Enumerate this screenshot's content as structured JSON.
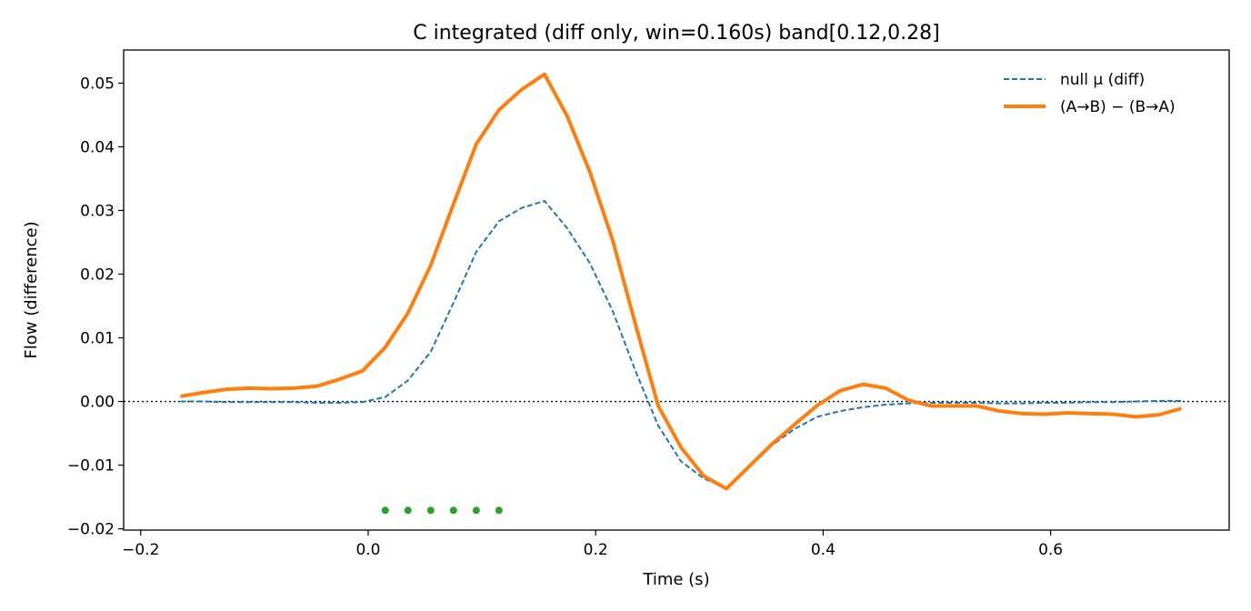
{
  "chart_data": {
    "type": "line",
    "title": "C integrated (diff only, win=0.160s)   band[0.12,0.28]",
    "xlabel": "Time (s)",
    "ylabel": "Flow (difference)",
    "xlim": [
      -0.215,
      0.757
    ],
    "ylim": [
      -0.0202,
      0.0552
    ],
    "xticks": [
      -0.2,
      0.0,
      0.2,
      0.4,
      0.6
    ],
    "xtick_labels": [
      "−0.2",
      "0.0",
      "0.2",
      "0.4",
      "0.6"
    ],
    "yticks": [
      -0.02,
      -0.01,
      0.0,
      0.01,
      0.02,
      0.03,
      0.04,
      0.05
    ],
    "ytick_labels": [
      "−0.02",
      "−0.01",
      "0.00",
      "0.01",
      "0.02",
      "0.03",
      "0.04",
      "0.05"
    ],
    "grid": false,
    "legend_position": "top-right",
    "reference_line": {
      "y": 0.0,
      "style": "dotted",
      "color": "#000000"
    },
    "series": [
      {
        "name": "null μ (diff)",
        "style": "dashed",
        "color": "#1f77b4",
        "x": [
          -0.165,
          -0.145,
          -0.125,
          -0.105,
          -0.085,
          -0.065,
          -0.045,
          -0.025,
          -0.005,
          0.015,
          0.035,
          0.055,
          0.075,
          0.095,
          0.115,
          0.135,
          0.155,
          0.175,
          0.195,
          0.215,
          0.235,
          0.255,
          0.275,
          0.295,
          0.315,
          0.335,
          0.355,
          0.375,
          0.395,
          0.415,
          0.435,
          0.455,
          0.475,
          0.495,
          0.515,
          0.535,
          0.555,
          0.575,
          0.595,
          0.615,
          0.635,
          0.655,
          0.675,
          0.695,
          0.715
        ],
        "values": [
          0.0,
          0.0,
          -0.0001,
          -0.0001,
          -0.0001,
          -0.0001,
          -0.0002,
          -0.0002,
          -0.0001,
          0.0007,
          0.0033,
          0.0078,
          0.0155,
          0.0235,
          0.0283,
          0.0304,
          0.0315,
          0.0272,
          0.0217,
          0.0142,
          0.0048,
          -0.0038,
          -0.0094,
          -0.0121,
          -0.0136,
          -0.0103,
          -0.0069,
          -0.0043,
          -0.0024,
          -0.0015,
          -0.0009,
          -0.0005,
          -0.0003,
          -0.0002,
          -0.0002,
          -0.0002,
          -0.0003,
          -0.0003,
          -0.0002,
          -0.0002,
          -0.0001,
          -0.0001,
          0.0,
          0.0001,
          0.0001
        ]
      },
      {
        "name": "(A→B) − (B→A)",
        "style": "solid",
        "color": "#ff7f0e",
        "x": [
          -0.165,
          -0.145,
          -0.125,
          -0.105,
          -0.085,
          -0.065,
          -0.045,
          -0.025,
          -0.005,
          0.015,
          0.035,
          0.055,
          0.075,
          0.095,
          0.115,
          0.135,
          0.155,
          0.175,
          0.195,
          0.215,
          0.235,
          0.255,
          0.275,
          0.295,
          0.315,
          0.335,
          0.355,
          0.375,
          0.395,
          0.415,
          0.435,
          0.455,
          0.475,
          0.495,
          0.515,
          0.535,
          0.555,
          0.575,
          0.595,
          0.615,
          0.635,
          0.655,
          0.675,
          0.695,
          0.715
        ],
        "values": [
          0.0008,
          0.0014,
          0.0019,
          0.0021,
          0.002,
          0.0021,
          0.0024,
          0.0035,
          0.0048,
          0.0085,
          0.0139,
          0.0214,
          0.031,
          0.0404,
          0.0458,
          0.049,
          0.0514,
          0.0448,
          0.036,
          0.0253,
          0.0121,
          -0.0007,
          -0.0072,
          -0.0117,
          -0.0137,
          -0.0102,
          -0.0067,
          -0.0036,
          -0.0006,
          0.0017,
          0.0027,
          0.0021,
          0.0002,
          -0.0007,
          -0.0007,
          -0.0007,
          -0.0015,
          -0.0019,
          -0.002,
          -0.0018,
          -0.0019,
          -0.002,
          -0.0024,
          -0.0021,
          -0.0011
        ]
      },
      {
        "style": "markers",
        "color": "#2ca02c",
        "x": [
          0.015,
          0.035,
          0.055,
          0.075,
          0.095,
          0.115
        ],
        "values": [
          -0.0171,
          -0.0171,
          -0.0171,
          -0.0171,
          -0.0171,
          -0.0171
        ]
      }
    ]
  }
}
